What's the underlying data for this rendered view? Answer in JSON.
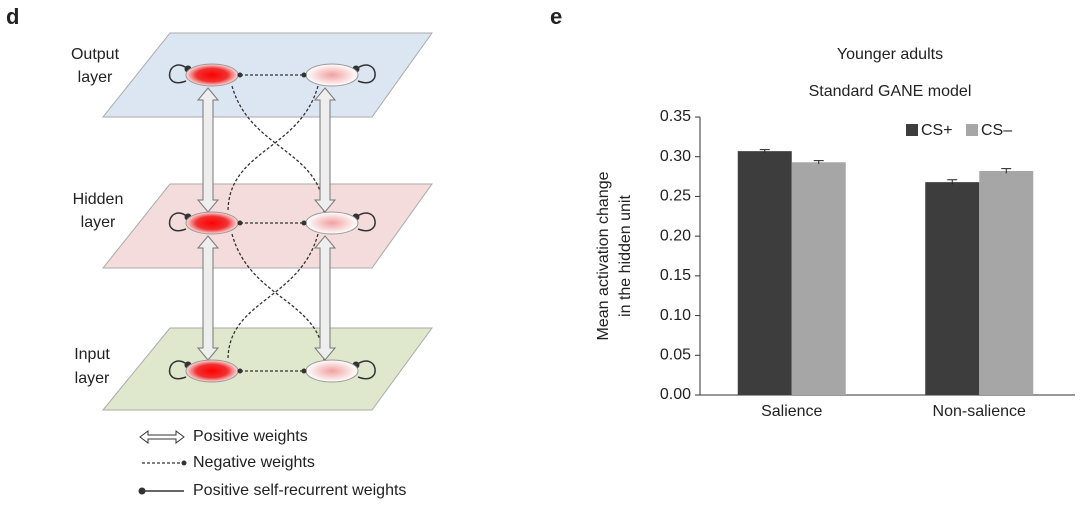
{
  "diagram": {
    "panel": "d",
    "layers": [
      {
        "label": [
          "Output",
          "layer"
        ]
      },
      {
        "label": [
          "Hidden",
          "layer"
        ]
      },
      {
        "label": [
          "Input",
          "layer"
        ]
      }
    ],
    "legend": [
      "Positive weights",
      "Negative weights",
      "Positive self-recurrent weights"
    ]
  },
  "chart_data": {
    "type": "bar",
    "panel": "e",
    "title": "Younger adults",
    "subtitle": "Standard GANE model",
    "ylabel": [
      "Mean activation change",
      "in the hidden unit"
    ],
    "categories": [
      "Salience",
      "Non-salience"
    ],
    "series": [
      {
        "name": "CS+",
        "color": "#3d3d3d",
        "values": [
          0.307,
          0.268
        ],
        "errors": [
          0.002,
          0.003
        ]
      },
      {
        "name": "CS–",
        "color": "#a6a6a6",
        "values": [
          0.293,
          0.282
        ],
        "errors": [
          0.002,
          0.003
        ]
      }
    ],
    "ylim": [
      0,
      0.35
    ],
    "yticks": [
      {
        "value": 0,
        "label": "0.00"
      },
      {
        "value": 0.05,
        "label": "0.05"
      },
      {
        "value": 0.1,
        "label": "0.10"
      },
      {
        "value": 0.15,
        "label": "0.15"
      },
      {
        "value": 0.2,
        "label": "0.20"
      },
      {
        "value": 0.25,
        "label": "0.25"
      },
      {
        "value": 0.3,
        "label": "0.30"
      },
      {
        "value": 0.35,
        "label": "0.35"
      }
    ]
  }
}
